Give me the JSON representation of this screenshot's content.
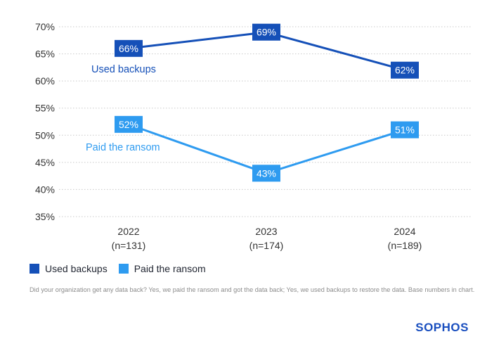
{
  "chart_data": {
    "type": "line",
    "categories": [
      "2022\n(n=131)",
      "2023\n(n=174)",
      "2024\n(n=189)"
    ],
    "category_years": [
      "2022",
      "2023",
      "2024"
    ],
    "category_bases": [
      "(n=131)",
      "(n=174)",
      "(n=189)"
    ],
    "series": [
      {
        "name": "Used backups",
        "values": [
          66,
          69,
          62
        ],
        "labels": [
          "66%",
          "69%",
          "62%"
        ],
        "color": "#1550b8"
      },
      {
        "name": "Paid the ransom",
        "values": [
          52,
          43,
          51
        ],
        "labels": [
          "52%",
          "43%",
          "51%"
        ],
        "color": "#2e9bf0"
      }
    ],
    "y_ticks": [
      35,
      40,
      45,
      50,
      55,
      60,
      65,
      70
    ],
    "y_tick_labels": [
      "35%",
      "40%",
      "45%",
      "50%",
      "55%",
      "60%",
      "65%",
      "70%"
    ],
    "ylim": [
      35,
      70
    ],
    "grid": "horizontal-dotted",
    "legend_placement": "bottom-left",
    "inline_series_labels": [
      "Used backups",
      "Paid the ransom"
    ]
  },
  "legend": {
    "items": [
      {
        "label": "Used backups",
        "color": "#1550b8"
      },
      {
        "label": "Paid the ransom",
        "color": "#2e9bf0"
      }
    ]
  },
  "footnote": "Did your organization get any data back? Yes, we paid the ransom and got the data back; Yes, we used backups to restore the data. Base numbers in chart.",
  "brand": "SOPHOS"
}
